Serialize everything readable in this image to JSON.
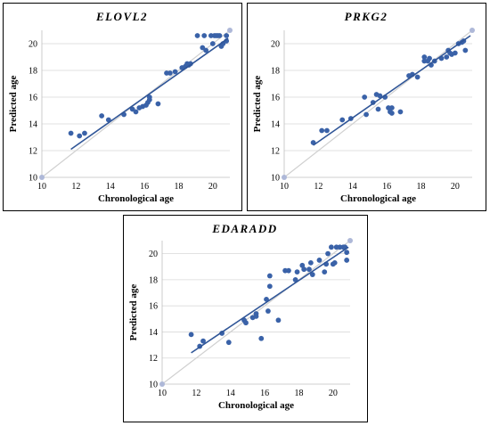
{
  "chart_data": [
    {
      "type": "scatter",
      "title": "ELOVL2",
      "xlabel": "Chronological age",
      "ylabel": "Predicted age",
      "xlim": [
        10,
        21
      ],
      "ylim": [
        10,
        21
      ],
      "xticks": [
        10,
        12,
        14,
        16,
        18,
        20
      ],
      "yticks": [
        10,
        12,
        14,
        16,
        18,
        20
      ],
      "grid": "horizontal",
      "reference_points": [
        [
          10,
          10
        ],
        [
          21,
          21
        ]
      ],
      "trendline": [
        [
          11.7,
          12.1
        ],
        [
          20.9,
          20.4
        ]
      ],
      "points": [
        [
          11.7,
          13.3
        ],
        [
          12.2,
          13.1
        ],
        [
          12.5,
          13.3
        ],
        [
          13.5,
          14.6
        ],
        [
          13.9,
          14.3
        ],
        [
          14.8,
          14.7
        ],
        [
          15.3,
          15.1
        ],
        [
          15.5,
          14.9
        ],
        [
          15.7,
          15.2
        ],
        [
          15.9,
          15.3
        ],
        [
          16.1,
          15.4
        ],
        [
          16.2,
          15.6
        ],
        [
          16.3,
          16.0
        ],
        [
          16.3,
          15.8
        ],
        [
          16.8,
          15.5
        ],
        [
          17.3,
          17.8
        ],
        [
          17.5,
          17.8
        ],
        [
          17.8,
          17.9
        ],
        [
          18.2,
          18.2
        ],
        [
          18.4,
          18.3
        ],
        [
          18.5,
          18.5
        ],
        [
          18.6,
          18.4
        ],
        [
          18.7,
          18.5
        ],
        [
          19.1,
          20.6
        ],
        [
          19.4,
          19.7
        ],
        [
          19.5,
          20.6
        ],
        [
          19.6,
          19.5
        ],
        [
          19.9,
          20.6
        ],
        [
          20.0,
          20.0
        ],
        [
          20.1,
          20.6
        ],
        [
          20.2,
          20.6
        ],
        [
          20.3,
          20.6
        ],
        [
          20.4,
          20.6
        ],
        [
          20.5,
          19.8
        ],
        [
          20.6,
          20.0
        ],
        [
          20.8,
          20.2
        ],
        [
          20.8,
          20.6
        ]
      ]
    },
    {
      "type": "scatter",
      "title": "PRKG2",
      "xlabel": "Chronological age",
      "ylabel": "Predicted age",
      "xlim": [
        10,
        21
      ],
      "ylim": [
        10,
        21
      ],
      "xticks": [
        10,
        12,
        14,
        16,
        18,
        20
      ],
      "yticks": [
        10,
        12,
        14,
        16,
        18,
        20
      ],
      "grid": "horizontal",
      "reference_points": [
        [
          10,
          10
        ],
        [
          21,
          21
        ]
      ],
      "trendline": [
        [
          11.7,
          12.4
        ],
        [
          20.9,
          20.6
        ]
      ],
      "points": [
        [
          11.7,
          12.6
        ],
        [
          12.2,
          13.5
        ],
        [
          12.5,
          13.5
        ],
        [
          13.4,
          14.3
        ],
        [
          13.9,
          14.4
        ],
        [
          14.7,
          16.0
        ],
        [
          14.8,
          14.7
        ],
        [
          15.2,
          15.6
        ],
        [
          15.4,
          16.2
        ],
        [
          15.5,
          15.1
        ],
        [
          15.6,
          16.1
        ],
        [
          15.9,
          16.0
        ],
        [
          16.1,
          15.2
        ],
        [
          16.2,
          14.9
        ],
        [
          16.3,
          15.2
        ],
        [
          16.3,
          14.8
        ],
        [
          16.8,
          14.9
        ],
        [
          17.3,
          17.6
        ],
        [
          17.5,
          17.7
        ],
        [
          17.8,
          17.5
        ],
        [
          18.2,
          19.0
        ],
        [
          18.2,
          18.7
        ],
        [
          18.4,
          18.7
        ],
        [
          18.5,
          18.9
        ],
        [
          18.6,
          18.4
        ],
        [
          18.8,
          18.7
        ],
        [
          19.2,
          18.9
        ],
        [
          19.5,
          19.0
        ],
        [
          19.6,
          19.5
        ],
        [
          19.7,
          19.3
        ],
        [
          19.8,
          19.2
        ],
        [
          20.0,
          19.3
        ],
        [
          20.2,
          20.0
        ],
        [
          20.4,
          20.1
        ],
        [
          20.5,
          20.2
        ],
        [
          20.6,
          19.5
        ]
      ]
    },
    {
      "type": "scatter",
      "title": "EDARADD",
      "xlabel": "Chronological age",
      "ylabel": "Predicted age",
      "xlim": [
        10,
        21
      ],
      "ylim": [
        10,
        21
      ],
      "xticks": [
        10,
        12,
        14,
        16,
        18,
        20
      ],
      "yticks": [
        10,
        12,
        14,
        16,
        18,
        20
      ],
      "grid": "horizontal",
      "reference_points": [
        [
          10,
          10
        ],
        [
          21,
          21
        ]
      ],
      "trendline": [
        [
          11.7,
          12.4
        ],
        [
          20.9,
          20.5
        ]
      ],
      "points": [
        [
          11.7,
          13.8
        ],
        [
          12.2,
          12.9
        ],
        [
          12.4,
          13.3
        ],
        [
          13.5,
          13.9
        ],
        [
          13.9,
          13.2
        ],
        [
          14.8,
          14.9
        ],
        [
          14.9,
          14.7
        ],
        [
          15.3,
          15.1
        ],
        [
          15.5,
          15.2
        ],
        [
          15.5,
          15.4
        ],
        [
          15.8,
          13.5
        ],
        [
          16.1,
          16.5
        ],
        [
          16.2,
          15.6
        ],
        [
          16.3,
          17.5
        ],
        [
          16.3,
          18.3
        ],
        [
          16.8,
          14.9
        ],
        [
          17.2,
          18.7
        ],
        [
          17.4,
          18.7
        ],
        [
          17.8,
          18.0
        ],
        [
          17.9,
          18.6
        ],
        [
          18.2,
          19.1
        ],
        [
          18.3,
          18.8
        ],
        [
          18.6,
          18.8
        ],
        [
          18.7,
          19.3
        ],
        [
          18.8,
          18.4
        ],
        [
          19.2,
          19.5
        ],
        [
          19.5,
          18.6
        ],
        [
          19.6,
          19.2
        ],
        [
          19.7,
          20.0
        ],
        [
          19.9,
          20.5
        ],
        [
          20.0,
          19.2
        ],
        [
          20.1,
          19.3
        ],
        [
          20.2,
          20.5
        ],
        [
          20.4,
          20.5
        ],
        [
          20.6,
          20.5
        ],
        [
          20.8,
          20.1
        ],
        [
          20.8,
          19.5
        ],
        [
          20.7,
          20.5
        ]
      ]
    }
  ]
}
